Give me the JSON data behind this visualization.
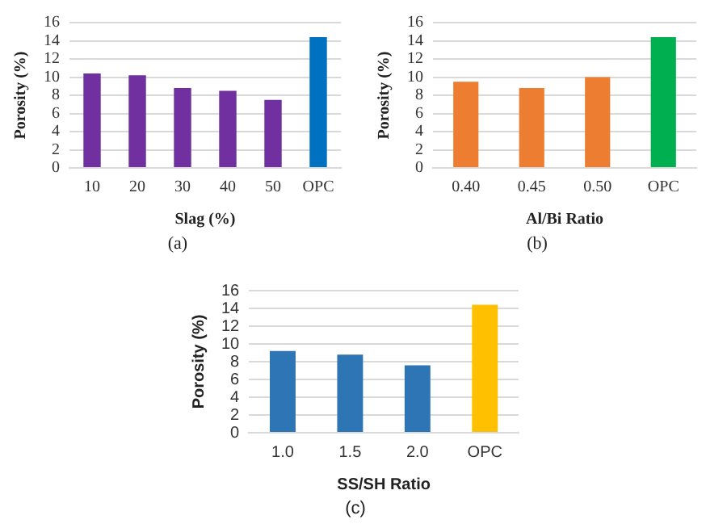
{
  "chart_data": [
    {
      "type": "bar",
      "categories": [
        "10",
        "20",
        "30",
        "40",
        "50",
        "OPC"
      ],
      "values": [
        10.4,
        10.2,
        8.8,
        8.5,
        7.5,
        14.4
      ],
      "colors": [
        "#7030a0",
        "#7030a0",
        "#7030a0",
        "#7030a0",
        "#7030a0",
        "#0070c0"
      ],
      "xlabel": "Slag (%)",
      "ylabel": "Porosity (%)",
      "ylim": [
        0,
        16
      ],
      "yticks": [
        0,
        2,
        4,
        6,
        8,
        10,
        12,
        14,
        16
      ],
      "grid": "y",
      "annotations": [
        "(a)"
      ]
    },
    {
      "type": "bar",
      "categories": [
        "0.40",
        "0.45",
        "0.50",
        "OPC"
      ],
      "values": [
        9.5,
        8.8,
        10.0,
        14.4
      ],
      "colors": [
        "#ed7d31",
        "#ed7d31",
        "#ed7d31",
        "#00b050"
      ],
      "xlabel": "Al/Bi Ratio",
      "ylabel": "Porosity (%)",
      "ylim": [
        0,
        16
      ],
      "yticks": [
        0,
        2,
        4,
        6,
        8,
        10,
        12,
        14,
        16
      ],
      "grid": "y",
      "annotations": [
        "(b)"
      ]
    },
    {
      "type": "bar",
      "categories": [
        "1.0",
        "1.5",
        "2.0",
        "OPC"
      ],
      "values": [
        9.2,
        8.8,
        7.6,
        14.4
      ],
      "colors": [
        "#2e75b6",
        "#2e75b6",
        "#2e75b6",
        "#ffc000"
      ],
      "xlabel": "SS/SH Ratio",
      "ylabel": "Porosity (%)",
      "ylim": [
        0,
        16
      ],
      "yticks": [
        0,
        2,
        4,
        6,
        8,
        10,
        12,
        14,
        16
      ],
      "grid": "y",
      "annotations": [
        "(c)"
      ]
    }
  ]
}
